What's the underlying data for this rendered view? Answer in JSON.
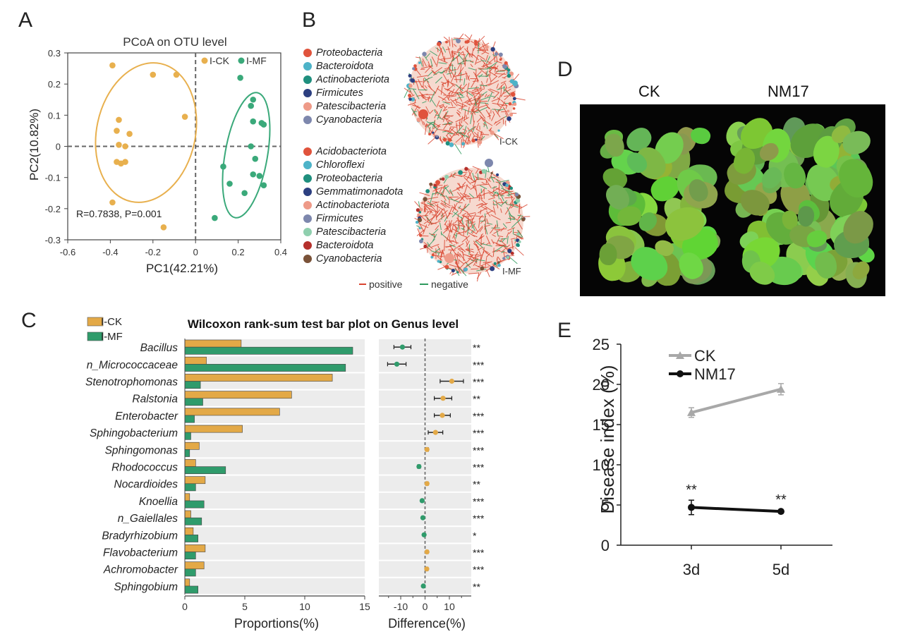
{
  "panels": {
    "a": {
      "letter": "A",
      "chart_data": {
        "type": "scatter",
        "title": "PCoA on OTU level",
        "xlabel": "PC1(42.21%)",
        "ylabel": "PC2(10.82%)",
        "xlim": [
          -0.6,
          0.4
        ],
        "ylim": [
          -0.3,
          0.3
        ],
        "xticks": [
          "-0.6",
          "-0.4",
          "-0.2",
          "0",
          "0.2",
          "0.4"
        ],
        "yticks": [
          "0.3",
          "0.2",
          "0.1",
          "0",
          "-0.1",
          "-0.2",
          "-0.3"
        ],
        "annotation": "R=0.7838, P=0.001",
        "series": [
          {
            "name": "I-CK",
            "color": "#e8b04e",
            "points": [
              [
                -0.39,
                0.26
              ],
              [
                -0.2,
                0.23
              ],
              [
                -0.36,
                0.085
              ],
              [
                -0.37,
                0.05
              ],
              [
                -0.05,
                0.095
              ],
              [
                -0.09,
                0.23
              ],
              [
                -0.31,
                0.04
              ],
              [
                -0.36,
                0.005
              ],
              [
                -0.33,
                0.0
              ],
              [
                -0.37,
                -0.05
              ],
              [
                -0.35,
                -0.055
              ],
              [
                -0.33,
                -0.05
              ],
              [
                -0.39,
                -0.18
              ],
              [
                -0.15,
                -0.26
              ]
            ]
          },
          {
            "name": "I-MF",
            "color": "#3aa97a",
            "points": [
              [
                0.21,
                0.22
              ],
              [
                0.27,
                0.15
              ],
              [
                0.26,
                0.13
              ],
              [
                0.31,
                0.075
              ],
              [
                0.32,
                0.07
              ],
              [
                0.27,
                0.08
              ],
              [
                0.28,
                -0.04
              ],
              [
                0.3,
                -0.095
              ],
              [
                0.27,
                -0.09
              ],
              [
                0.32,
                -0.125
              ],
              [
                0.23,
                -0.15
              ],
              [
                0.13,
                -0.065
              ],
              [
                0.26,
                0.0
              ],
              [
                0.09,
                -0.23
              ],
              [
                0.16,
                -0.12
              ]
            ]
          }
        ]
      }
    },
    "b": {
      "letter": "B",
      "groups": [
        {
          "label": "I-CK",
          "items": [
            {
              "name": "Proteobacteria",
              "color": "#e0533c"
            },
            {
              "name": "Bacteroidota",
              "color": "#4db3c8"
            },
            {
              "name": "Actinobacteriota",
              "color": "#1f8f7e"
            },
            {
              "name": "Firmicutes",
              "color": "#2c3f80"
            },
            {
              "name": "Patescibacteria",
              "color": "#ee9a88"
            },
            {
              "name": "Cyanobacteria",
              "color": "#7d87ad"
            }
          ]
        },
        {
          "label": "I-MF",
          "items": [
            {
              "name": "Acidobacteriota",
              "color": "#e0533c"
            },
            {
              "name": "Chloroflexi",
              "color": "#4db3c8"
            },
            {
              "name": "Proteobacteria",
              "color": "#1f8f7e"
            },
            {
              "name": "Gemmatimonadota",
              "color": "#2c3f80"
            },
            {
              "name": "Actinobacteriota",
              "color": "#ee9a88"
            },
            {
              "name": "Firmicutes",
              "color": "#7d87ad"
            },
            {
              "name": "Patescibacteria",
              "color": "#8fcfae"
            },
            {
              "name": "Bacteroidota",
              "color": "#b5302c"
            },
            {
              "name": "Cyanobacteria",
              "color": "#7a5238"
            }
          ]
        }
      ],
      "edge_legend": {
        "positive": "positive",
        "negative": "negative",
        "positive_color": "#d9442f",
        "negative_color": "#2e9a5e"
      }
    },
    "c": {
      "letter": "C",
      "chart_data": {
        "type": "bar",
        "title": "Wilcoxon rank-sum test bar plot on Genus level",
        "xlabel": "Proportions(%)",
        "xlabel2": "Difference(%)",
        "xlim": [
          0,
          15
        ],
        "xticks": [
          "0",
          "5",
          "10",
          "15"
        ],
        "diff_xlim": [
          -19,
          19
        ],
        "diff_xticks": [
          "-10",
          "0",
          "10"
        ],
        "categories": [
          "Bacillus",
          "n_Micrococcaceae",
          "Stenotrophomonas",
          "Ralstonia",
          "Enterobacter",
          "Sphingobacterium",
          "Sphingomonas",
          "Rhodococcus",
          "Nocardioides",
          "Knoellia",
          "n_Gaiellales",
          "Bradyrhizobium",
          "Flavobacterium",
          "Achromobacter",
          "Sphingobium"
        ],
        "series": [
          {
            "name": "I-CK",
            "color": "#e3a947",
            "values": [
              4.7,
              1.8,
              12.3,
              8.9,
              7.9,
              4.8,
              1.2,
              0.9,
              1.7,
              0.4,
              0.5,
              0.7,
              1.7,
              1.6,
              0.4
            ]
          },
          {
            "name": "I-MF",
            "color": "#2f9b6b",
            "values": [
              14.0,
              13.4,
              1.3,
              1.5,
              0.8,
              0.5,
              0.4,
              3.4,
              0.9,
              1.6,
              1.4,
              1.1,
              0.9,
              0.9,
              1.1
            ]
          }
        ],
        "difference": [
          -9.3,
          -11.6,
          11.0,
          7.4,
          7.1,
          4.3,
          0.8,
          -2.5,
          0.8,
          -1.2,
          -0.9,
          -0.4,
          0.8,
          0.7,
          -0.7
        ],
        "diff_error": [
          3.5,
          3.8,
          4.8,
          3.6,
          3.3,
          3.0,
          0.6,
          0.6,
          0.5,
          0.4,
          0.4,
          0.3,
          0.5,
          0.5,
          0.4
        ],
        "significance": [
          "**",
          "***",
          "***",
          "**",
          "***",
          "***",
          "***",
          "***",
          "**",
          "***",
          "***",
          "*",
          "***",
          "***",
          "**"
        ]
      }
    },
    "d": {
      "letter": "D",
      "labels": [
        "CK",
        "NM17"
      ]
    },
    "e": {
      "letter": "E",
      "chart_data": {
        "type": "line",
        "xlabel": "",
        "ylabel": "Disease index (%)",
        "categories": [
          "3d",
          "5d"
        ],
        "ylim": [
          0,
          25
        ],
        "yticks": [
          "0",
          "5",
          "10",
          "15",
          "20",
          "25"
        ],
        "series": [
          {
            "name": "CK",
            "color": "#a8a8a8",
            "values": [
              16.5,
              19.4
            ],
            "errors": [
              0.6,
              0.7
            ],
            "labels": [
              "",
              ""
            ]
          },
          {
            "name": "NM17",
            "color": "#111111",
            "values": [
              4.7,
              4.2
            ],
            "errors": [
              0.9,
              0.2
            ],
            "labels": [
              "**",
              "**"
            ]
          }
        ]
      }
    }
  }
}
